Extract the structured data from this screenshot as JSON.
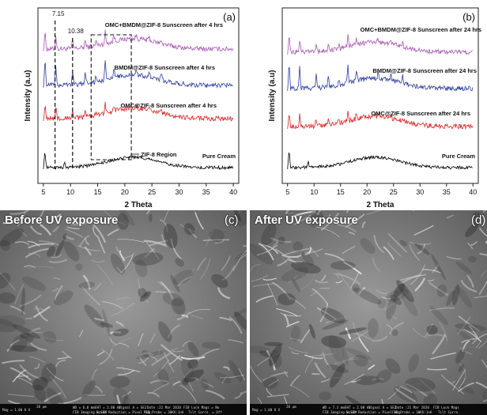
{
  "chart_data": [
    {
      "panel": "(a)",
      "type": "line",
      "xlabel": "2 Theta",
      "ylabel": "Intensity (a.u)",
      "xlim": [
        4,
        41
      ],
      "xticks": [
        5,
        10,
        15,
        20,
        25,
        30,
        35,
        40
      ],
      "series": [
        {
          "name": "Pure Cream",
          "color": "#000000"
        },
        {
          "name": "OMC@ZIF-8 Sunscreen after 4 hrs",
          "color": "#e02020"
        },
        {
          "name": "BMDM@ZIF-8 Sunscreen after 4 hrs",
          "color": "#2b3da0"
        },
        {
          "name": "OMC+BMDM@ZIF-8 Sunscreen after 4 hrs",
          "color": "#a855b5"
        }
      ],
      "annotations": [
        "7.15",
        "10.38",
        "ZIF-8 Region"
      ]
    },
    {
      "panel": "(b)",
      "type": "line",
      "xlabel": "2 Theta",
      "ylabel": "Intensity (a.u)",
      "xlim": [
        4,
        41
      ],
      "xticks": [
        5,
        10,
        15,
        20,
        25,
        30,
        35,
        40
      ],
      "series": [
        {
          "name": "Pure Cream",
          "color": "#000000"
        },
        {
          "name": "OMC@ZIF-8 Sunscreen after 24 hrs",
          "color": "#e02020"
        },
        {
          "name": "BMDM@ZIF-8 Sunscreen after 24 hrs",
          "color": "#2b3da0"
        },
        {
          "name": "OMC+BMDM@ZIF-8 Sunscreen after 24 hrs",
          "color": "#a855b5"
        }
      ]
    }
  ],
  "panels": {
    "a_label": "(a)",
    "b_label": "(b)",
    "c_label": "(c)",
    "d_label": "(d)",
    "c_title": "Before UV exposure",
    "d_title": "After UV exposure"
  },
  "sem_bar_c": {
    "mag": "Mag = 1.00 K X",
    "scale": "20 µm",
    "wd": "WD = 6.8 mm",
    "imaging": "FIB Imaging = SEM",
    "eht": "EHT = 2.00 kV",
    "noise": "Noise Reduction = Pixel Avg.",
    "signal": "Signal A = SE2",
    "probe": "FIB Probe = 30KV:1nA",
    "date": "Date :21 Mar 2020",
    "lock": "FIB Lock Mags = No",
    "tilt": "Tilt Corrn. = Off"
  },
  "sem_bar_d": {
    "mag": "Mag = 1.00 K X",
    "scale": "20 µm",
    "wd": "WD = 7.3 mm",
    "imaging": "FIB Imaging = SEM",
    "eht": "EHT = 2.00 kV",
    "noise": "Noise Reduction = Pixel Avg.",
    "signal": "Signal A = SE2",
    "probe": "FIB Probe = 30KV:1nA",
    "date": "Date :21 Mar 2020",
    "lock": "FIB Lock Mags",
    "tilt": "Tilt Corrn."
  }
}
